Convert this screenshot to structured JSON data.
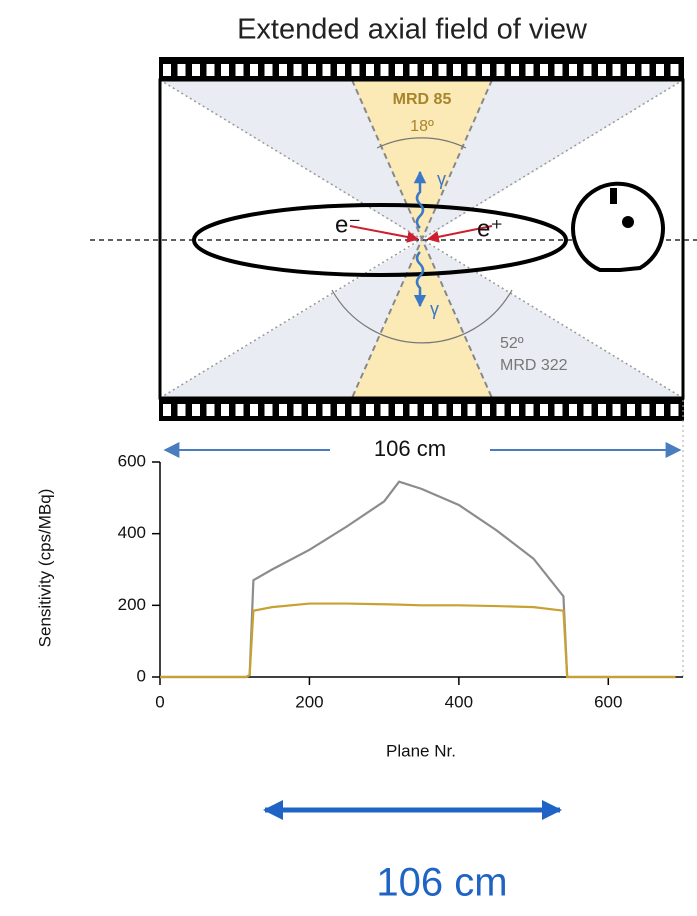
{
  "chart_data": {
    "type": "line",
    "title": "Extended axial field of view",
    "annotations": [
      "MRD 85",
      "18º",
      "γ",
      "e⁻",
      "e⁺",
      "γ",
      "52º",
      "MRD 322",
      "106 cm",
      "106 cm"
    ],
    "x_label": "Plane Nr.",
    "y_label": "Sensitivity (cps/MBq)",
    "x": [
      0,
      115,
      120,
      125,
      150,
      200,
      250,
      300,
      320,
      350,
      400,
      450,
      500,
      540,
      545,
      600,
      650,
      690
    ],
    "series": [
      {
        "color": "#8c8c8c",
        "values": [
          0,
          0,
          5,
          270,
          300,
          355,
          420,
          490,
          545,
          525,
          480,
          410,
          330,
          225,
          0,
          0,
          0,
          0
        ]
      },
      {
        "color": "#c9a032",
        "values": [
          0,
          0,
          5,
          185,
          195,
          205,
          205,
          203,
          202,
          200,
          200,
          198,
          195,
          185,
          0,
          0,
          0,
          0
        ]
      }
    ],
    "xlim": [
      0,
      700
    ],
    "ylim": [
      0,
      600
    ],
    "xticks": [
      0,
      200,
      400,
      600
    ],
    "yticks": [
      0,
      200,
      400,
      600
    ]
  }
}
